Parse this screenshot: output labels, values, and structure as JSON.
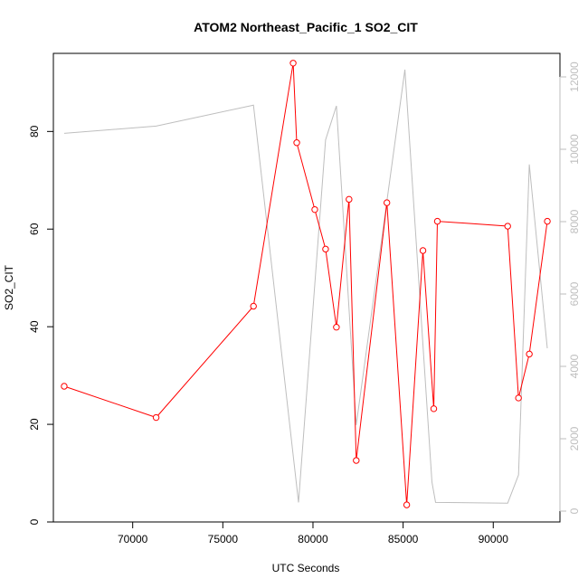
{
  "chart_data": {
    "type": "line",
    "title": "ATOM2 Northeast_Pacific_1 SO2_CIT",
    "xlabel": "UTC Seconds",
    "ylabel": "SO2_CIT",
    "xlim": [
      65600,
      93700
    ],
    "ylim": [
      0,
      96
    ],
    "y2lim": [
      -300,
      12650
    ],
    "x_ticks": [
      "70000",
      "75000",
      "80000",
      "85000",
      "90000"
    ],
    "y_ticks": [
      "0",
      "20",
      "40",
      "60",
      "80"
    ],
    "y2_ticks": [
      "0",
      "2000",
      "4000",
      "6000",
      "8000",
      "10000",
      "12000"
    ],
    "colors": {
      "primary": "#ff0000",
      "secondary": "#bebebe",
      "axis": "#000000"
    },
    "series": [
      {
        "axis": "left",
        "color": "#ff0000",
        "marker": "open-circle",
        "points": [
          [
            66200,
            27.8
          ],
          [
            71300,
            21.4
          ],
          [
            76700,
            44.2
          ],
          [
            78900,
            94.0
          ],
          [
            79100,
            77.7
          ],
          [
            80100,
            64.0
          ],
          [
            80700,
            55.9
          ],
          [
            81300,
            39.9
          ],
          [
            82000,
            66.1
          ],
          [
            82400,
            12.6
          ],
          [
            84100,
            65.4
          ],
          [
            85200,
            3.5
          ],
          [
            86100,
            55.6
          ],
          [
            86700,
            23.2
          ],
          [
            86900,
            61.6
          ],
          [
            90800,
            60.6
          ],
          [
            91400,
            25.4
          ],
          [
            92000,
            34.4
          ],
          [
            93000,
            61.6
          ]
        ]
      },
      {
        "axis": "right",
        "color": "#bebebe",
        "marker": "none",
        "points": [
          [
            66200,
            10440
          ],
          [
            71300,
            10640
          ],
          [
            76700,
            11220
          ],
          [
            79200,
            240
          ],
          [
            80700,
            10260
          ],
          [
            81300,
            11200
          ],
          [
            82400,
            2380
          ],
          [
            85100,
            12200
          ],
          [
            86600,
            800
          ],
          [
            86800,
            240
          ],
          [
            90800,
            220
          ],
          [
            91400,
            1000
          ],
          [
            92000,
            9580
          ],
          [
            93000,
            4500
          ]
        ]
      }
    ]
  }
}
